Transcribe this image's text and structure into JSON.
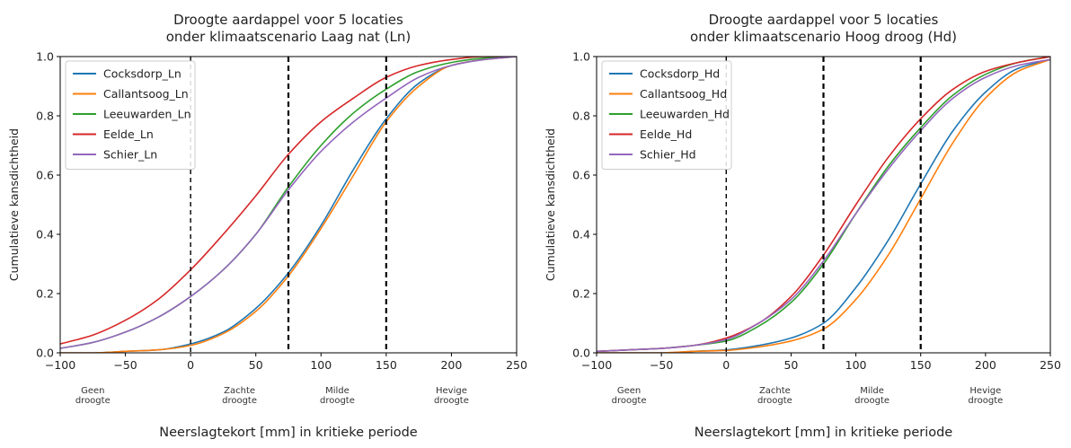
{
  "chart_data": [
    {
      "type": "line",
      "title": [
        "Droogte aardappel voor 5 locaties",
        "onder klimaatscenario Laag nat (Ln)"
      ],
      "xlabel": "Neerslagtekort [mm] in kritieke periode",
      "ylabel": "Cumulatieve kansdichtheid",
      "xlim": [
        -100,
        250
      ],
      "ylim": [
        0,
        1
      ],
      "xticks": [
        "−100",
        "−50",
        "0",
        "50",
        "100",
        "150",
        "200",
        "250"
      ],
      "yticks": [
        "0.0",
        "0.2",
        "0.4",
        "0.6",
        "0.8",
        "1.0"
      ],
      "vlines": [
        0,
        75,
        150
      ],
      "category_labels": [
        {
          "x": -75,
          "lines": [
            "Geen",
            "droogte"
          ]
        },
        {
          "x": 37.5,
          "lines": [
            "Zachte",
            "droogte"
          ]
        },
        {
          "x": 112.5,
          "lines": [
            "Milde",
            "droogte"
          ]
        },
        {
          "x": 200,
          "lines": [
            "Hevige",
            "droogte"
          ]
        }
      ],
      "legend_position": "upper-left",
      "grid": false,
      "series": [
        {
          "name": "Cocksdorp_Ln",
          "color": "#1f77b4",
          "x": [
            -100,
            -75,
            -50,
            -25,
            0,
            25,
            50,
            75,
            100,
            125,
            150,
            175,
            200,
            225,
            250
          ],
          "y": [
            0.0,
            0.0,
            0.005,
            0.01,
            0.03,
            0.07,
            0.15,
            0.27,
            0.43,
            0.62,
            0.79,
            0.91,
            0.97,
            0.99,
            1.0
          ]
        },
        {
          "name": "Callantsoog_Ln",
          "color": "#ff7f0e",
          "x": [
            -100,
            -75,
            -50,
            -25,
            0,
            25,
            50,
            75,
            100,
            125,
            150,
            175,
            200,
            225,
            250
          ],
          "y": [
            0.0,
            0.0,
            0.005,
            0.01,
            0.025,
            0.065,
            0.14,
            0.26,
            0.42,
            0.6,
            0.78,
            0.9,
            0.97,
            0.99,
            1.0
          ]
        },
        {
          "name": "Leeuwarden_Ln",
          "color": "#2ca02c",
          "x": [
            -100,
            -75,
            -50,
            -25,
            0,
            25,
            50,
            75,
            100,
            125,
            150,
            175,
            200,
            225,
            250
          ],
          "y": [
            0.015,
            0.035,
            0.07,
            0.12,
            0.19,
            0.28,
            0.4,
            0.56,
            0.7,
            0.81,
            0.89,
            0.95,
            0.98,
            0.995,
            1.0
          ]
        },
        {
          "name": "Eelde_Ln",
          "color": "#d62728",
          "x": [
            -100,
            -75,
            -50,
            -25,
            0,
            25,
            50,
            75,
            100,
            125,
            150,
            175,
            200,
            225,
            250
          ],
          "y": [
            0.03,
            0.06,
            0.11,
            0.18,
            0.28,
            0.4,
            0.53,
            0.67,
            0.78,
            0.86,
            0.93,
            0.97,
            0.99,
            1.0,
            1.0
          ]
        },
        {
          "name": "Schier_Ln",
          "color": "#9467bd",
          "x": [
            -100,
            -75,
            -50,
            -25,
            0,
            25,
            50,
            75,
            100,
            125,
            150,
            175,
            200,
            225,
            250
          ],
          "y": [
            0.015,
            0.035,
            0.07,
            0.12,
            0.19,
            0.28,
            0.4,
            0.55,
            0.68,
            0.78,
            0.86,
            0.93,
            0.97,
            0.99,
            1.0
          ]
        }
      ]
    },
    {
      "type": "line",
      "title": [
        "Droogte aardappel voor 5 locaties",
        "onder klimaatscenario Hoog droog (Hd)"
      ],
      "xlabel": "Neerslagtekort [mm] in kritieke periode",
      "ylabel": "Cumulatieve kansdichtheid",
      "xlim": [
        -100,
        250
      ],
      "ylim": [
        0,
        1
      ],
      "xticks": [
        "−100",
        "−50",
        "0",
        "50",
        "100",
        "150",
        "200",
        "250"
      ],
      "yticks": [
        "0.0",
        "0.2",
        "0.4",
        "0.6",
        "0.8",
        "1.0"
      ],
      "vlines": [
        0,
        75,
        150
      ],
      "category_labels": [
        {
          "x": -75,
          "lines": [
            "Geen",
            "droogte"
          ]
        },
        {
          "x": 37.5,
          "lines": [
            "Zachte",
            "droogte"
          ]
        },
        {
          "x": 112.5,
          "lines": [
            "Milde",
            "droogte"
          ]
        },
        {
          "x": 200,
          "lines": [
            "Hevige",
            "droogte"
          ]
        }
      ],
      "legend_position": "upper-left",
      "grid": false,
      "series": [
        {
          "name": "Cocksdorp_Hd",
          "color": "#1f77b4",
          "x": [
            -100,
            -75,
            -50,
            -25,
            0,
            25,
            50,
            75,
            100,
            125,
            150,
            175,
            200,
            225,
            250
          ],
          "y": [
            0.0,
            0.0,
            0.0,
            0.005,
            0.01,
            0.025,
            0.05,
            0.1,
            0.22,
            0.38,
            0.57,
            0.75,
            0.88,
            0.96,
            0.99
          ]
        },
        {
          "name": "Callantsoog_Hd",
          "color": "#ff7f0e",
          "x": [
            -100,
            -75,
            -50,
            -25,
            0,
            25,
            50,
            75,
            100,
            125,
            150,
            175,
            200,
            225,
            250
          ],
          "y": [
            0.0,
            0.0,
            0.0,
            0.005,
            0.008,
            0.02,
            0.04,
            0.08,
            0.18,
            0.33,
            0.52,
            0.71,
            0.86,
            0.95,
            0.99
          ]
        },
        {
          "name": "Leeuwarden_Hd",
          "color": "#2ca02c",
          "x": [
            -100,
            -75,
            -50,
            -25,
            0,
            25,
            50,
            75,
            100,
            125,
            150,
            175,
            200,
            225,
            250
          ],
          "y": [
            0.005,
            0.01,
            0.015,
            0.025,
            0.04,
            0.09,
            0.17,
            0.3,
            0.47,
            0.63,
            0.76,
            0.87,
            0.94,
            0.98,
            1.0
          ]
        },
        {
          "name": "Eelde_Hd",
          "color": "#d62728",
          "x": [
            -100,
            -75,
            -50,
            -25,
            0,
            25,
            50,
            75,
            100,
            125,
            150,
            175,
            200,
            225,
            250
          ],
          "y": [
            0.005,
            0.01,
            0.015,
            0.025,
            0.05,
            0.1,
            0.19,
            0.33,
            0.5,
            0.66,
            0.79,
            0.89,
            0.95,
            0.98,
            1.0
          ]
        },
        {
          "name": "Schier_Hd",
          "color": "#9467bd",
          "x": [
            -100,
            -75,
            -50,
            -25,
            0,
            25,
            50,
            75,
            100,
            125,
            150,
            175,
            200,
            225,
            250
          ],
          "y": [
            0.005,
            0.01,
            0.015,
            0.025,
            0.045,
            0.1,
            0.18,
            0.31,
            0.47,
            0.62,
            0.75,
            0.86,
            0.93,
            0.97,
            0.99
          ]
        }
      ]
    }
  ]
}
